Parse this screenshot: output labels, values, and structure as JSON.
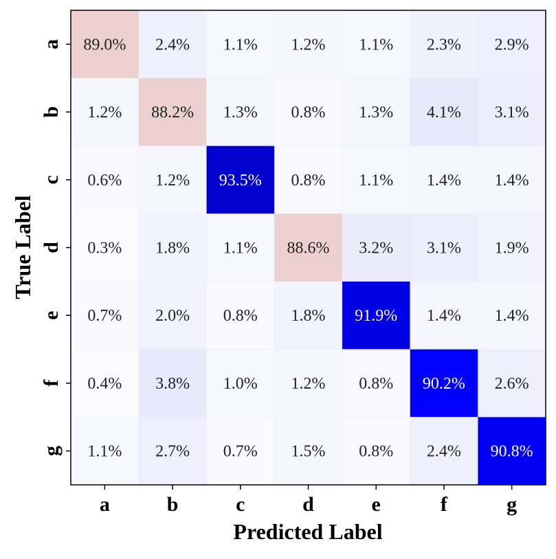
{
  "chart_data": {
    "type": "heatmap",
    "xlabel": "Predicted Label",
    "ylabel": "True Label",
    "x_categories": [
      "a",
      "b",
      "c",
      "d",
      "e",
      "f",
      "g"
    ],
    "y_categories": [
      "a",
      "b",
      "c",
      "d",
      "e",
      "f",
      "g"
    ],
    "values": [
      [
        89.0,
        2.4,
        1.1,
        1.2,
        1.1,
        2.3,
        2.9
      ],
      [
        1.2,
        88.2,
        1.3,
        0.8,
        1.3,
        4.1,
        3.1
      ],
      [
        0.6,
        1.2,
        93.5,
        0.8,
        1.1,
        1.4,
        1.4
      ],
      [
        0.3,
        1.8,
        1.1,
        88.6,
        3.2,
        3.1,
        1.9
      ],
      [
        0.7,
        2.0,
        0.8,
        1.8,
        91.9,
        1.4,
        1.4
      ],
      [
        0.4,
        3.8,
        1.0,
        1.2,
        0.8,
        90.2,
        2.6
      ],
      [
        1.1,
        2.7,
        0.7,
        1.5,
        0.8,
        2.4,
        90.8
      ]
    ],
    "value_format": "percent",
    "colors": {
      "high": "#0000ff",
      "mid": "#ecd0d0",
      "low": "#fcfcff",
      "light": "#e6e6fa"
    }
  }
}
